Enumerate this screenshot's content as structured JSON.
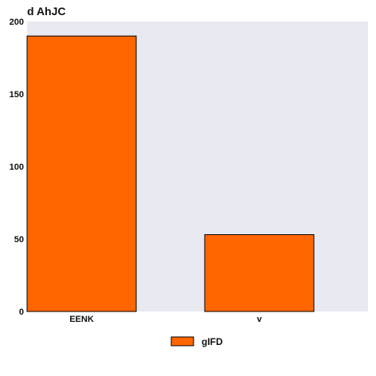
{
  "chart_data": {
    "type": "bar",
    "title": "d AhJC",
    "categories": [
      "EENK",
      "v"
    ],
    "series": [
      {
        "name": "gIFD",
        "values": [
          190,
          53
        ]
      }
    ],
    "xlabel": "",
    "ylabel": "",
    "ylim": [
      0,
      200
    ],
    "yticks": [
      0,
      50,
      100,
      150,
      200
    ],
    "grid": false,
    "legend": "bottom-center",
    "colors": {
      "bar": "#ff6600",
      "bar_stroke": "#000000",
      "plot_bg": "#e9e9f2"
    }
  }
}
